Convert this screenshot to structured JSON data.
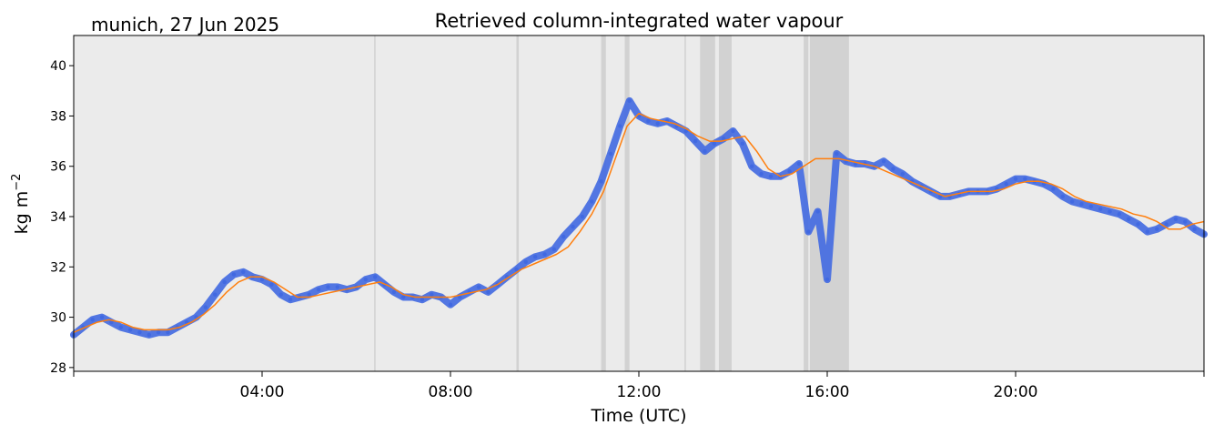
{
  "location_date": "munich, 27 Jun 2025",
  "chart_data": {
    "type": "line",
    "title": "Retrieved column-integrated water vapour",
    "xlabel": "Time (UTC)",
    "ylabel": "kg m",
    "ylabel_superscript": "−2",
    "xlim": [
      0,
      24
    ],
    "ylim": [
      27.85,
      41.2
    ],
    "x_ticks": [
      4,
      8,
      12,
      16,
      20
    ],
    "x_tick_labels": [
      "04:00",
      "08:00",
      "12:00",
      "16:00",
      "20:00"
    ],
    "y_ticks": [
      28,
      30,
      32,
      34,
      36,
      38,
      40
    ],
    "y_tick_labels": [
      "28",
      "30",
      "32",
      "34",
      "36",
      "38",
      "40"
    ],
    "grid": false,
    "background_color": "#ebebeb",
    "shaded_periods": [
      [
        6.38,
        6.41
      ],
      [
        9.4,
        9.45
      ],
      [
        11.2,
        11.3
      ],
      [
        11.7,
        11.8
      ],
      [
        12.97,
        13.0
      ],
      [
        13.3,
        13.62
      ],
      [
        13.7,
        13.97
      ],
      [
        15.5,
        15.6
      ],
      [
        15.63,
        16.46
      ]
    ],
    "series": [
      {
        "style": "scatter",
        "color": "#4169e1",
        "x": [
          0.0,
          0.2,
          0.4,
          0.6,
          0.8,
          1.0,
          1.2,
          1.4,
          1.6,
          1.8,
          2.0,
          2.2,
          2.4,
          2.6,
          2.8,
          3.0,
          3.2,
          3.4,
          3.6,
          3.8,
          4.0,
          4.2,
          4.4,
          4.6,
          4.8,
          5.0,
          5.2,
          5.4,
          5.6,
          5.8,
          6.0,
          6.2,
          6.4,
          6.6,
          6.8,
          7.0,
          7.2,
          7.4,
          7.6,
          7.8,
          8.0,
          8.2,
          8.4,
          8.6,
          8.8,
          9.0,
          9.2,
          9.4,
          9.6,
          9.8,
          10.0,
          10.2,
          10.4,
          10.6,
          10.8,
          11.0,
          11.2,
          11.4,
          11.6,
          11.8,
          12.0,
          12.2,
          12.4,
          12.6,
          12.8,
          13.0,
          13.2,
          13.4,
          13.6,
          13.8,
          14.0,
          14.2,
          14.4,
          14.6,
          14.8,
          15.0,
          15.2,
          15.4,
          15.6,
          15.8,
          16.0,
          16.2,
          16.4,
          16.6,
          16.8,
          17.0,
          17.2,
          17.4,
          17.6,
          17.8,
          18.0,
          18.2,
          18.4,
          18.6,
          18.8,
          19.0,
          19.2,
          19.4,
          19.6,
          19.8,
          20.0,
          20.2,
          20.4,
          20.6,
          20.8,
          21.0,
          21.2,
          21.4,
          21.6,
          21.8,
          22.0,
          22.2,
          22.4,
          22.6,
          22.8,
          23.0,
          23.2,
          23.4,
          23.6,
          23.8,
          24.0
        ],
        "y": [
          29.3,
          29.6,
          29.9,
          30.0,
          29.8,
          29.6,
          29.5,
          29.4,
          29.3,
          29.4,
          29.4,
          29.6,
          29.8,
          30.0,
          30.4,
          30.9,
          31.4,
          31.7,
          31.8,
          31.6,
          31.5,
          31.3,
          30.9,
          30.7,
          30.8,
          30.9,
          31.1,
          31.2,
          31.2,
          31.1,
          31.2,
          31.5,
          31.6,
          31.3,
          31.0,
          30.8,
          30.8,
          30.7,
          30.9,
          30.8,
          30.5,
          30.8,
          31.0,
          31.2,
          31.0,
          31.3,
          31.6,
          31.9,
          32.2,
          32.4,
          32.5,
          32.7,
          33.2,
          33.6,
          34.0,
          34.6,
          35.4,
          36.5,
          37.6,
          38.6,
          38.0,
          37.8,
          37.7,
          37.8,
          37.6,
          37.4,
          37.0,
          36.6,
          36.9,
          37.1,
          37.4,
          36.9,
          36.0,
          35.7,
          35.6,
          35.6,
          35.8,
          36.1,
          33.4,
          34.2,
          31.5,
          36.5,
          36.2,
          36.1,
          36.1,
          36.0,
          36.2,
          35.9,
          35.7,
          35.4,
          35.2,
          35.0,
          34.8,
          34.8,
          34.9,
          35.0,
          35.0,
          35.0,
          35.1,
          35.3,
          35.5,
          35.5,
          35.4,
          35.3,
          35.1,
          34.8,
          34.6,
          34.5,
          34.4,
          34.3,
          34.2,
          34.1,
          33.9,
          33.7,
          33.4,
          33.5,
          33.7,
          33.9,
          33.8,
          33.5,
          33.3
        ]
      },
      {
        "style": "line",
        "color": "#ff7f0e",
        "x": [
          0.0,
          0.25,
          0.5,
          0.75,
          1.0,
          1.25,
          1.5,
          1.75,
          2.0,
          2.25,
          2.5,
          2.75,
          3.0,
          3.25,
          3.5,
          3.75,
          4.0,
          4.25,
          4.5,
          4.75,
          5.0,
          5.25,
          5.5,
          5.75,
          6.0,
          6.25,
          6.5,
          6.75,
          7.0,
          7.25,
          7.5,
          7.75,
          8.0,
          8.25,
          8.5,
          8.75,
          9.0,
          9.25,
          9.5,
          9.75,
          10.0,
          10.25,
          10.5,
          10.75,
          11.0,
          11.25,
          11.5,
          11.75,
          12.0,
          12.25,
          12.5,
          12.75,
          13.0,
          13.25,
          13.5,
          13.75,
          14.0,
          14.25,
          14.5,
          14.75,
          15.0,
          15.25,
          15.5,
          15.75,
          16.0,
          16.25,
          16.5,
          16.75,
          17.0,
          17.25,
          17.5,
          17.75,
          18.0,
          18.25,
          18.5,
          18.75,
          19.0,
          19.25,
          19.5,
          19.75,
          20.0,
          20.25,
          20.5,
          20.75,
          21.0,
          21.25,
          21.5,
          21.75,
          22.0,
          22.25,
          22.5,
          22.75,
          23.0,
          23.25,
          23.5,
          23.75,
          24.0
        ],
        "y": [
          29.4,
          29.6,
          29.8,
          29.9,
          29.8,
          29.6,
          29.5,
          29.5,
          29.5,
          29.6,
          29.8,
          30.1,
          30.5,
          31.0,
          31.4,
          31.6,
          31.6,
          31.4,
          31.1,
          30.8,
          30.8,
          30.9,
          31.0,
          31.1,
          31.2,
          31.3,
          31.4,
          31.2,
          30.9,
          30.8,
          30.8,
          30.8,
          30.8,
          30.9,
          31.0,
          31.1,
          31.3,
          31.6,
          31.9,
          32.1,
          32.3,
          32.5,
          32.8,
          33.4,
          34.1,
          35.0,
          36.3,
          37.6,
          38.1,
          37.9,
          37.8,
          37.7,
          37.5,
          37.2,
          37.0,
          37.0,
          37.1,
          37.2,
          36.6,
          35.9,
          35.6,
          35.7,
          36.0,
          36.3,
          36.3,
          36.3,
          36.2,
          36.1,
          36.0,
          35.8,
          35.6,
          35.4,
          35.2,
          35.0,
          34.8,
          34.9,
          35.0,
          35.0,
          35.0,
          35.1,
          35.3,
          35.4,
          35.4,
          35.3,
          35.1,
          34.8,
          34.6,
          34.5,
          34.4,
          34.3,
          34.1,
          34.0,
          33.8,
          33.5,
          33.5,
          33.7,
          33.8
        ]
      }
    ]
  }
}
